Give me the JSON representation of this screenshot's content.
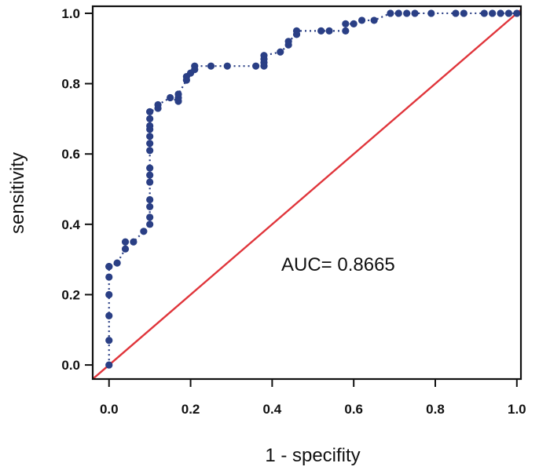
{
  "chart_data": {
    "type": "scatter",
    "title": "",
    "xlabel": "1 - specifity",
    "ylabel": "sensitivity",
    "xlim": [
      -0.04,
      1.01
    ],
    "ylim": [
      -0.04,
      1.02
    ],
    "xticks": [
      0.0,
      0.2,
      0.4,
      0.6,
      0.8,
      1.0
    ],
    "yticks": [
      0.0,
      0.2,
      0.4,
      0.6,
      0.8,
      1.0
    ],
    "xtick_labels": [
      "0.0",
      "0.2",
      "0.4",
      "0.6",
      "0.8",
      "1.0"
    ],
    "ytick_labels": [
      "0.0",
      "0.2",
      "0.4",
      "0.6",
      "0.8",
      "1.0"
    ],
    "grid": false,
    "annotation": "AUC= 0.8665",
    "auc": 0.8665,
    "colors": {
      "roc": "#2a3f85",
      "diagonal": "#e0353b",
      "axis": "#111111"
    },
    "series": [
      {
        "name": "ROC",
        "x": [
          0.0,
          0.0,
          0.0,
          0.0,
          0.0,
          0.0,
          0.0,
          0.02,
          0.04,
          0.04,
          0.06,
          0.085,
          0.1,
          0.1,
          0.1,
          0.1,
          0.1,
          0.1,
          0.1,
          0.1,
          0.1,
          0.1,
          0.1,
          0.1,
          0.1,
          0.1,
          0.1,
          0.12,
          0.12,
          0.15,
          0.17,
          0.17,
          0.17,
          0.19,
          0.19,
          0.2,
          0.21,
          0.21,
          0.25,
          0.29,
          0.36,
          0.38,
          0.38,
          0.38,
          0.38,
          0.42,
          0.44,
          0.44,
          0.46,
          0.46,
          0.52,
          0.54,
          0.58,
          0.58,
          0.6,
          0.62,
          0.65,
          0.69,
          0.71,
          0.73,
          0.75,
          0.79,
          0.85,
          0.87,
          0.92,
          0.94,
          0.96,
          0.98,
          1.0
        ],
        "y": [
          0.0,
          0.07,
          0.14,
          0.2,
          0.25,
          0.28,
          0.28,
          0.29,
          0.33,
          0.35,
          0.35,
          0.38,
          0.4,
          0.42,
          0.45,
          0.47,
          0.52,
          0.54,
          0.56,
          0.61,
          0.63,
          0.65,
          0.67,
          0.68,
          0.7,
          0.72,
          0.72,
          0.73,
          0.74,
          0.76,
          0.75,
          0.76,
          0.77,
          0.81,
          0.82,
          0.83,
          0.84,
          0.85,
          0.85,
          0.85,
          0.85,
          0.85,
          0.86,
          0.87,
          0.88,
          0.89,
          0.91,
          0.92,
          0.94,
          0.95,
          0.95,
          0.95,
          0.95,
          0.97,
          0.97,
          0.98,
          0.98,
          1.0,
          1.0,
          1.0,
          1.0,
          1.0,
          1.0,
          1.0,
          1.0,
          1.0,
          1.0,
          1.0,
          1.0
        ]
      },
      {
        "name": "reference",
        "x": [
          -0.04,
          1.01
        ],
        "y": [
          -0.04,
          1.01
        ]
      }
    ]
  }
}
